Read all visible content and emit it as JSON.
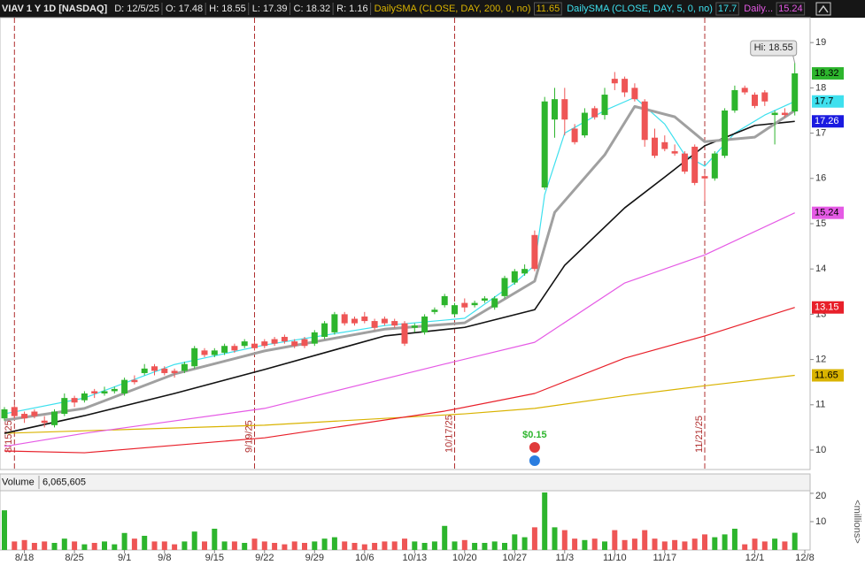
{
  "chart_data": {
    "type": "candlestick",
    "title": "VIAV 1 Y 1D [NASDAQ]",
    "header": [
      "D: 12/5/25",
      "O: 17.48",
      "H: 18.55",
      "L: 17.39",
      "C: 18.32",
      "R: 1.16"
    ],
    "categories": [
      "8/14",
      "8/15",
      "8/18",
      "8/19",
      "8/20",
      "8/21",
      "8/22",
      "8/25",
      "8/26",
      "8/27",
      "8/28",
      "8/29",
      "9/2",
      "9/3",
      "9/4",
      "9/5",
      "9/8",
      "9/9",
      "9/10",
      "9/11",
      "9/12",
      "9/15",
      "9/16",
      "9/17",
      "9/18",
      "9/19",
      "9/22",
      "9/23",
      "9/24",
      "9/25",
      "9/26",
      "9/29",
      "9/30",
      "10/1",
      "10/2",
      "10/3",
      "10/6",
      "10/7",
      "10/8",
      "10/9",
      "10/10",
      "10/13",
      "10/14",
      "10/15",
      "10/16",
      "10/17",
      "10/20",
      "10/21",
      "10/22",
      "10/23",
      "10/24",
      "10/27",
      "10/28",
      "10/29",
      "10/30",
      "10/31",
      "11/3",
      "11/4",
      "11/5",
      "11/6",
      "11/7",
      "11/10",
      "11/11",
      "11/12",
      "11/13",
      "11/14",
      "11/17",
      "11/18",
      "11/19",
      "11/20",
      "11/21",
      "11/24",
      "11/25",
      "11/26",
      "11/28",
      "12/1",
      "12/2",
      "12/3",
      "12/4",
      "12/5"
    ],
    "open": [
      10.7,
      10.95,
      10.8,
      10.85,
      10.65,
      10.55,
      10.8,
      11.15,
      11.1,
      11.3,
      11.25,
      11.3,
      11.25,
      11.55,
      11.7,
      11.85,
      11.8,
      11.75,
      11.75,
      11.85,
      12.2,
      12.1,
      12.15,
      12.3,
      12.3,
      12.35,
      12.4,
      12.45,
      12.5,
      12.4,
      12.45,
      12.35,
      12.5,
      12.6,
      13.0,
      12.9,
      12.95,
      12.85,
      12.9,
      12.85,
      12.8,
      12.7,
      12.6,
      13.05,
      13.2,
      13.0,
      13.25,
      13.2,
      13.3,
      13.15,
      13.4,
      13.7,
      13.9,
      14.75,
      15.8,
      17.3,
      17.75,
      17.1,
      16.95,
      17.55,
      17.4,
      18.2,
      18.2,
      18.0,
      17.7,
      16.9,
      16.8,
      16.6,
      16.55,
      16.7,
      16.05,
      16.0,
      16.5,
      17.5,
      18.0,
      17.85,
      17.9,
      17.4,
      17.45,
      17.48
    ],
    "high": [
      10.95,
      11.0,
      10.85,
      10.9,
      10.75,
      10.9,
      11.25,
      11.2,
      11.3,
      11.35,
      11.4,
      11.4,
      11.6,
      11.65,
      11.9,
      11.9,
      11.85,
      11.8,
      11.95,
      12.3,
      12.25,
      12.25,
      12.35,
      12.35,
      12.45,
      12.4,
      12.45,
      12.5,
      12.55,
      12.45,
      12.5,
      12.65,
      12.85,
      13.05,
      13.05,
      12.95,
      13.05,
      12.9,
      12.95,
      12.9,
      12.85,
      12.8,
      13.0,
      13.15,
      13.45,
      13.25,
      13.35,
      13.3,
      13.4,
      13.4,
      13.85,
      14.0,
      14.1,
      14.85,
      17.8,
      18.0,
      18.0,
      17.2,
      17.55,
      17.6,
      18.0,
      18.35,
      18.25,
      18.1,
      17.75,
      17.1,
      16.95,
      16.75,
      16.6,
      16.75,
      16.1,
      16.6,
      17.55,
      18.05,
      18.05,
      17.9,
      17.95,
      17.5,
      17.55,
      18.55
    ],
    "low": [
      10.65,
      10.7,
      10.6,
      10.7,
      10.5,
      10.5,
      10.75,
      10.95,
      11.05,
      11.15,
      11.2,
      11.25,
      11.2,
      11.45,
      11.65,
      11.65,
      11.65,
      11.6,
      11.7,
      11.8,
      12.05,
      12.05,
      12.1,
      12.15,
      12.25,
      12.2,
      12.25,
      12.3,
      12.35,
      12.25,
      12.25,
      12.3,
      12.45,
      12.55,
      12.75,
      12.75,
      12.8,
      12.65,
      12.75,
      12.7,
      12.3,
      12.6,
      12.55,
      13.0,
      13.15,
      12.95,
      13.05,
      13.15,
      13.25,
      13.1,
      13.35,
      13.65,
      13.85,
      13.95,
      15.75,
      16.9,
      16.95,
      16.75,
      16.9,
      17.3,
      17.3,
      17.95,
      17.8,
      17.7,
      16.7,
      16.45,
      16.6,
      16.5,
      16.1,
      15.85,
      15.5,
      15.95,
      16.45,
      17.45,
      17.85,
      17.55,
      17.6,
      16.75,
      17.35,
      17.39
    ],
    "close": [
      10.9,
      10.75,
      10.7,
      10.75,
      10.6,
      10.85,
      11.15,
      11.05,
      11.25,
      11.25,
      11.3,
      11.35,
      11.55,
      11.5,
      11.8,
      11.75,
      11.7,
      11.7,
      11.9,
      12.25,
      12.1,
      12.2,
      12.3,
      12.2,
      12.4,
      12.25,
      12.3,
      12.35,
      12.4,
      12.3,
      12.3,
      12.6,
      12.8,
      13.0,
      12.8,
      12.8,
      12.85,
      12.7,
      12.8,
      12.75,
      12.35,
      12.75,
      12.95,
      13.1,
      13.4,
      13.2,
      13.15,
      13.25,
      13.35,
      13.35,
      13.8,
      13.95,
      14.0,
      14.0,
      17.7,
      17.75,
      17.3,
      16.8,
      17.45,
      17.35,
      17.85,
      18.1,
      17.9,
      17.75,
      16.85,
      16.5,
      16.65,
      16.55,
      16.15,
      15.9,
      16.0,
      16.55,
      17.5,
      17.95,
      17.9,
      17.6,
      17.7,
      17.45,
      17.4,
      18.32
    ],
    "up_color": "#2db52d",
    "down_color": "#ee5555",
    "ylim": [
      9.59,
      19.55
    ],
    "yticks": [
      10,
      11,
      12,
      13,
      14,
      15,
      16,
      17,
      18,
      19
    ],
    "xticks": [
      "8/18",
      "8/25",
      "9/1",
      "9/8",
      "9/15",
      "9/22",
      "9/29",
      "10/6",
      "10/13",
      "10/20",
      "10/27",
      "11/3",
      "11/10",
      "11/17",
      "12/1",
      "12/8"
    ],
    "series": [
      {
        "name": "DailySMA (CLOSE, DAY, 200, 0, no)",
        "color": "#d9b300",
        "x": [
          "8/14",
          "9/22",
          "10/20",
          "10/29",
          "11/11",
          "11/21",
          "12/5"
        ],
        "values": [
          10.37,
          10.55,
          10.8,
          10.92,
          11.2,
          11.42,
          11.65
        ]
      },
      {
        "name": "DailySMA (CLOSE, DAY, 5, 0, no)",
        "color": "#3ee0ee",
        "x": [
          "8/14",
          "8/26",
          "9/9",
          "9/22",
          "10/8",
          "10/20",
          "10/27",
          "10/29",
          "10/30",
          "11/3",
          "11/7",
          "11/12",
          "11/17",
          "11/19",
          "11/21",
          "11/26",
          "12/2",
          "12/5"
        ],
        "values": [
          10.8,
          11.15,
          11.89,
          12.32,
          12.75,
          12.91,
          13.69,
          14.08,
          15.64,
          17.0,
          17.5,
          17.79,
          17.2,
          16.52,
          16.27,
          17.0,
          17.4,
          17.7
        ]
      },
      {
        "name": "Daily...",
        "color": "#e55ae5",
        "x": [
          "8/14",
          "8/26",
          "9/22",
          "10/16",
          "10/29",
          "11/11",
          "11/21",
          "12/5"
        ],
        "values": [
          10.08,
          10.37,
          10.92,
          11.9,
          12.38,
          13.69,
          14.31,
          15.24
        ]
      },
      {
        "color": "#e8202a",
        "x": [
          "8/14",
          "8/26",
          "9/22",
          "10/16",
          "10/29",
          "11/11",
          "11/21",
          "12/5"
        ],
        "values": [
          9.98,
          9.94,
          10.27,
          10.86,
          11.25,
          12.03,
          12.52,
          13.15
        ]
      },
      {
        "color": "#111111",
        "label_color": "#1a1ae0",
        "x": [
          "8/14",
          "8/26",
          "9/9",
          "9/22",
          "10/8",
          "10/20",
          "10/29",
          "11/3",
          "11/11",
          "11/17",
          "11/21",
          "12/1",
          "12/5"
        ],
        "values": [
          10.37,
          10.76,
          11.25,
          11.78,
          12.52,
          12.71,
          13.1,
          14.08,
          15.35,
          16.03,
          16.72,
          17.17,
          17.26
        ]
      },
      {
        "color": "#a0a0a0",
        "x": [
          "8/14",
          "8/26",
          "9/9",
          "9/22",
          "10/8",
          "10/20",
          "10/29",
          "10/31",
          "11/7",
          "11/12",
          "11/18",
          "11/21",
          "12/1",
          "12/5"
        ],
        "values": [
          10.66,
          10.92,
          11.68,
          12.19,
          12.67,
          12.81,
          13.73,
          15.25,
          16.52,
          17.59,
          17.36,
          16.81,
          16.91,
          17.5
        ]
      }
    ],
    "expirations": [
      "8/15/25",
      "9/19/25",
      "10/17/25",
      "11/21/25"
    ],
    "dividend": {
      "date": "10/29",
      "label": "$0.15"
    },
    "hi_label": "Hi: 18.55",
    "volume": {
      "title": "Volume",
      "total": "6,065,605",
      "unit_label": "<millions>",
      "ylim": [
        0,
        20.6
      ],
      "yticks": [
        10,
        20
      ],
      "values": [
        14,
        3,
        3.5,
        2.5,
        3,
        2.5,
        4,
        3,
        2,
        2.5,
        3,
        2,
        6,
        4,
        5,
        3,
        3,
        2,
        3,
        6.5,
        3,
        7.5,
        3,
        3,
        2.5,
        4,
        3,
        2.5,
        2,
        3,
        2.5,
        3,
        4,
        4.5,
        3,
        2.5,
        2,
        2.5,
        3,
        3,
        4,
        3,
        2.5,
        3,
        8.5,
        3,
        3.5,
        2.5,
        2.5,
        3,
        2.5,
        5.5,
        4.5,
        8,
        20.3,
        8,
        7,
        4,
        3.5,
        4,
        3,
        7,
        3.5,
        4,
        7,
        4,
        3,
        3.5,
        3,
        4,
        5.5,
        4.5,
        5.5,
        7.5,
        2,
        4,
        3,
        4,
        3,
        6.07
      ]
    }
  }
}
